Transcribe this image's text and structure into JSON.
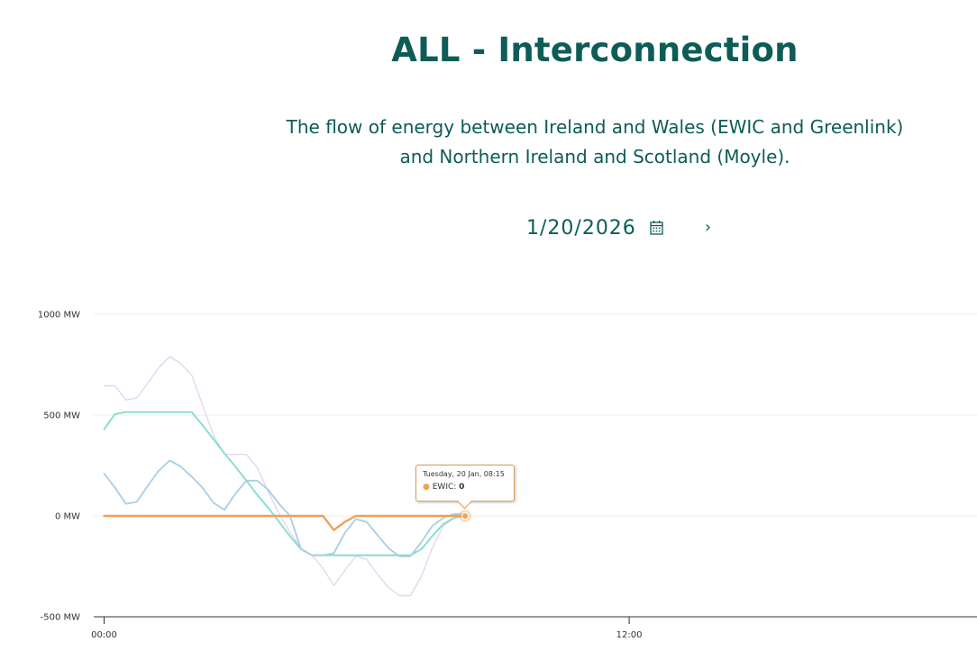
{
  "header": {
    "title": "ALL - Interconnection",
    "subtitle_line1": "The flow of energy between Ireland and Wales (EWIC and Greenlink)",
    "subtitle_line2": "and Northern Ireland and Scotland (Moyle)."
  },
  "date_picker": {
    "date": "1/20/2026",
    "calendar_icon": "calendar-icon",
    "next_icon": "chevron-right-icon",
    "next_glyph": "›"
  },
  "tooltip": {
    "time": "Tuesday, 20 Jan, 08:15",
    "series_label": "EWIC: ",
    "value": "0",
    "dot": "●"
  },
  "colors": {
    "title": "#0d5c57",
    "ewic": "#f0a058",
    "greenlink": "#7fdccc",
    "moyle": "#a9cde3",
    "total": "#e6d5f0",
    "grid": "#ececec"
  },
  "chart_data": {
    "type": "line",
    "title": "",
    "xlabel": "",
    "ylabel": "",
    "ylim": [
      -500,
      1000
    ],
    "y_ticks": [
      {
        "value": 1000,
        "label": "1000 MW"
      },
      {
        "value": 500,
        "label": "500 MW"
      },
      {
        "value": 0,
        "label": "0 MW"
      },
      {
        "value": -500,
        "label": "-500 MW"
      }
    ],
    "x_ticks": [
      {
        "value": 0,
        "label": "00:00"
      },
      {
        "value": 12,
        "label": "12:00"
      }
    ],
    "xlim": [
      -0.25,
      20.0
    ],
    "grid": true,
    "x_hours": [
      0,
      0.25,
      0.5,
      0.75,
      1,
      1.25,
      1.5,
      1.75,
      2,
      2.25,
      2.5,
      2.75,
      3,
      3.25,
      3.5,
      3.75,
      4,
      4.25,
      4.5,
      4.75,
      5,
      5.25,
      5.5,
      5.75,
      6,
      6.25,
      6.5,
      6.75,
      7,
      7.25,
      7.5,
      7.75,
      8,
      8.25
    ],
    "series": [
      {
        "key": "total",
        "values": [
          645,
          645,
          575,
          585,
          660,
          735,
          790,
          755,
          700,
          550,
          400,
          305,
          305,
          305,
          240,
          120,
          10,
          -80,
          -160,
          -195,
          -260,
          -345,
          -270,
          -200,
          -215,
          -290,
          -355,
          -395,
          -395,
          -300,
          -160,
          -50,
          -10,
          15
        ]
      },
      {
        "key": "greenlink",
        "values": [
          430,
          505,
          515,
          515,
          515,
          515,
          515,
          515,
          515,
          450,
          380,
          310,
          245,
          175,
          105,
          40,
          -30,
          -100,
          -165,
          -195,
          -195,
          -195,
          -195,
          -195,
          -195,
          -195,
          -195,
          -195,
          -195,
          -165,
          -100,
          -40,
          -10,
          0
        ]
      },
      {
        "key": "moyle",
        "values": [
          210,
          140,
          60,
          70,
          150,
          225,
          275,
          245,
          195,
          140,
          65,
          30,
          110,
          175,
          175,
          130,
          60,
          0,
          -165,
          -195,
          -195,
          -185,
          -85,
          -15,
          -30,
          -95,
          -160,
          -200,
          -200,
          -130,
          -50,
          -10,
          10,
          10
        ]
      },
      {
        "key": "ewic",
        "values": [
          0,
          0,
          0,
          0,
          0,
          0,
          0,
          0,
          0,
          0,
          0,
          0,
          0,
          0,
          0,
          0,
          0,
          0,
          0,
          0,
          0,
          -70,
          -30,
          0,
          0,
          0,
          0,
          0,
          0,
          0,
          0,
          0,
          0,
          0
        ]
      }
    ],
    "highlight": {
      "series": "ewic",
      "x": 8.25,
      "y": 0
    }
  }
}
